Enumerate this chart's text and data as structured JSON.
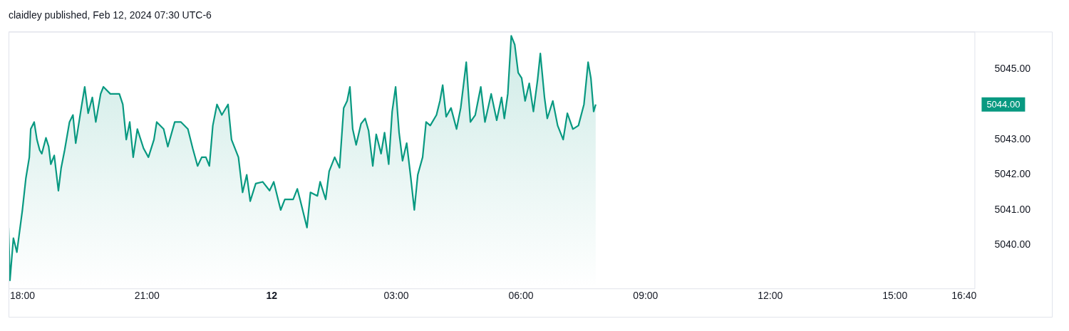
{
  "chart_data": {
    "type": "area",
    "title": "claidley published, Feb 12, 2024 07:30 UTC-6",
    "x": [
      "2024-02-11T17:40",
      "2024-02-11T17:42",
      "2024-02-11T17:47",
      "2024-02-11T17:52",
      "2024-02-11T17:58",
      "2024-02-11T18:00",
      "2024-02-11T18:05",
      "2024-02-11T18:10",
      "2024-02-11T18:12",
      "2024-02-11T18:17",
      "2024-02-11T18:21",
      "2024-02-11T18:25",
      "2024-02-11T18:28",
      "2024-02-11T18:34",
      "2024-02-11T18:38",
      "2024-02-11T18:41",
      "2024-02-11T18:46",
      "2024-02-11T18:52",
      "2024-02-11T18:56",
      "2024-02-11T19:01",
      "2024-02-11T19:08",
      "2024-02-11T19:13",
      "2024-02-11T19:17",
      "2024-02-11T19:25",
      "2024-02-11T19:30",
      "2024-02-11T19:35",
      "2024-02-11T19:41",
      "2024-02-11T19:46",
      "2024-02-11T19:53",
      "2024-02-11T19:57",
      "2024-02-11T20:07",
      "2024-02-11T20:20",
      "2024-02-11T20:25",
      "2024-02-11T20:30",
      "2024-02-11T20:35",
      "2024-02-11T20:40",
      "2024-02-11T20:46",
      "2024-02-11T20:55",
      "2024-02-11T21:02",
      "2024-02-11T21:10",
      "2024-02-11T21:14",
      "2024-02-11T21:24",
      "2024-02-11T21:30",
      "2024-02-11T21:40",
      "2024-02-11T21:49",
      "2024-02-11T21:59",
      "2024-02-11T22:06",
      "2024-02-11T22:13",
      "2024-02-11T22:19",
      "2024-02-11T22:25",
      "2024-02-11T22:30",
      "2024-02-11T22:35",
      "2024-02-11T22:41",
      "2024-02-11T22:48",
      "2024-02-11T22:57",
      "2024-02-11T23:02",
      "2024-02-11T23:12",
      "2024-02-11T23:18",
      "2024-02-11T23:24",
      "2024-02-11T23:29",
      "2024-02-11T23:37",
      "2024-02-11T23:47",
      "2024-02-11T23:57",
      "2024-02-12T00:03",
      "2024-02-12T00:13",
      "2024-02-12T00:19",
      "2024-02-12T00:31",
      "2024-02-12T00:37",
      "2024-02-12T00:41",
      "2024-02-12T00:51",
      "2024-02-12T00:56",
      "2024-02-12T01:06",
      "2024-02-12T01:10",
      "2024-02-12T01:18",
      "2024-02-12T01:23",
      "2024-02-12T01:31",
      "2024-02-12T01:38",
      "2024-02-12T01:44",
      "2024-02-12T01:49",
      "2024-02-12T01:53",
      "2024-02-12T01:57",
      "2024-02-12T02:02",
      "2024-02-12T02:09",
      "2024-02-12T02:15",
      "2024-02-12T02:20",
      "2024-02-12T02:26",
      "2024-02-12T02:31",
      "2024-02-12T02:38",
      "2024-02-12T02:43",
      "2024-02-12T02:49",
      "2024-02-12T02:54",
      "2024-02-12T02:59",
      "2024-02-12T03:04",
      "2024-02-12T03:09",
      "2024-02-12T03:15",
      "2024-02-12T03:21",
      "2024-02-12T03:26",
      "2024-02-12T03:31",
      "2024-02-12T03:38",
      "2024-02-12T03:43",
      "2024-02-12T03:49",
      "2024-02-12T03:58",
      "2024-02-12T04:03",
      "2024-02-12T04:07",
      "2024-02-12T04:12",
      "2024-02-12T04:19",
      "2024-02-12T04:27",
      "2024-02-12T04:33",
      "2024-02-12T04:41",
      "2024-02-12T04:47",
      "2024-02-12T04:54",
      "2024-02-12T05:02",
      "2024-02-12T05:08",
      "2024-02-12T05:17",
      "2024-02-12T05:25",
      "2024-02-12T05:32",
      "2024-02-12T05:36",
      "2024-02-12T05:41",
      "2024-02-12T05:46",
      "2024-02-12T05:51",
      "2024-02-12T05:56",
      "2024-02-12T06:01",
      "2024-02-12T06:06",
      "2024-02-12T06:12",
      "2024-02-12T06:18",
      "2024-02-12T06:24",
      "2024-02-12T06:28",
      "2024-02-12T06:34",
      "2024-02-12T06:38",
      "2024-02-12T06:46",
      "2024-02-12T06:53",
      "2024-02-12T07:01",
      "2024-02-12T07:07",
      "2024-02-12T07:15",
      "2024-02-12T07:23",
      "2024-02-12T07:31",
      "2024-02-12T07:37",
      "2024-02-12T07:41",
      "2024-02-12T07:45",
      "2024-02-12T07:48"
    ],
    "series": [
      {
        "color": "#089981",
        "values": [
          5040.5,
          5039.0,
          5040.2,
          5039.8,
          5040.7,
          5041.0,
          5041.9,
          5042.5,
          5043.3,
          5043.5,
          5043.0,
          5042.7,
          5042.6,
          5043.05,
          5042.8,
          5042.3,
          5042.55,
          5041.55,
          5042.2,
          5042.7,
          5043.5,
          5043.7,
          5042.9,
          5043.9,
          5044.5,
          5043.75,
          5044.2,
          5043.5,
          5044.3,
          5044.5,
          5044.3,
          5044.3,
          5044.0,
          5043.0,
          5043.5,
          5042.5,
          5043.3,
          5042.75,
          5042.5,
          5043.0,
          5043.5,
          5043.3,
          5042.8,
          5043.5,
          5043.5,
          5043.3,
          5042.75,
          5042.25,
          5042.5,
          5042.5,
          5042.25,
          5043.4,
          5044.0,
          5043.7,
          5044.0,
          5043.0,
          5042.5,
          5041.5,
          5042.0,
          5041.25,
          5041.75,
          5041.8,
          5041.55,
          5041.8,
          5041.0,
          5041.3,
          5041.3,
          5041.6,
          5041.3,
          5040.5,
          5041.5,
          5041.4,
          5041.8,
          5041.3,
          5042.1,
          5042.5,
          5042.2,
          5043.9,
          5044.1,
          5044.5,
          5043.3,
          5042.85,
          5043.45,
          5043.6,
          5043.25,
          5042.25,
          5043.15,
          5042.6,
          5043.2,
          5042.3,
          5043.8,
          5044.5,
          5043.2,
          5042.4,
          5042.9,
          5041.9,
          5041.0,
          5042.0,
          5042.5,
          5043.5,
          5043.4,
          5043.7,
          5044.1,
          5044.55,
          5043.65,
          5043.9,
          5043.3,
          5043.9,
          5045.2,
          5043.5,
          5043.7,
          5044.5,
          5043.5,
          5044.3,
          5043.55,
          5044.2,
          5043.6,
          5044.3,
          5045.95,
          5045.7,
          5044.9,
          5044.75,
          5044.1,
          5044.6,
          5043.8,
          5044.7,
          5045.45,
          5044.2,
          5043.6,
          5044.1,
          5043.4,
          5043.0,
          5043.75,
          5043.3,
          5043.4,
          5044.0,
          5045.2,
          5044.75,
          5043.8,
          5044.0
        ]
      }
    ],
    "xlim": [
      "2024-02-11T17:40",
      "2024-02-12T16:55"
    ],
    "xticks": [
      {
        "value": "2024-02-11T18:00",
        "label": "18:00"
      },
      {
        "value": "2024-02-11T21:00",
        "label": "21:00"
      },
      {
        "value": "2024-02-12T00:00",
        "label": "12"
      },
      {
        "value": "2024-02-12T03:00",
        "label": "03:00"
      },
      {
        "value": "2024-02-12T06:00",
        "label": "06:00"
      },
      {
        "value": "2024-02-12T09:00",
        "label": "09:00"
      },
      {
        "value": "2024-02-12T12:00",
        "label": "12:00"
      },
      {
        "value": "2024-02-12T15:00",
        "label": "15:00"
      },
      {
        "value": "2024-02-12T16:40",
        "label": "16:40"
      }
    ],
    "ylim": [
      5038.77,
      5046.07
    ],
    "yticks": [
      {
        "value": 5040,
        "label": "5040.00"
      },
      {
        "value": 5041,
        "label": "5041.00"
      },
      {
        "value": 5042,
        "label": "5042.00"
      },
      {
        "value": 5043,
        "label": "5043.00"
      },
      {
        "value": 5045,
        "label": "5045.00"
      }
    ],
    "annotations": [
      "5044.00"
    ],
    "grid": false,
    "legend": false,
    "marker": "none",
    "line_style": "solid"
  }
}
